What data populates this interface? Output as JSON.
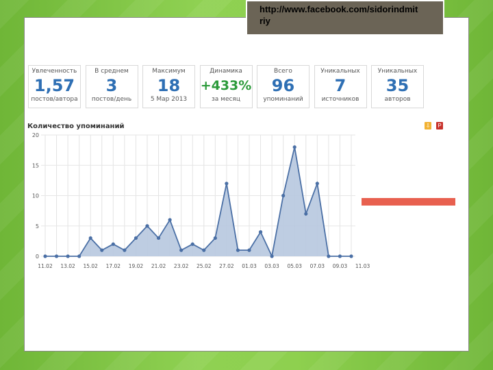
{
  "url": {
    "line1": "http://www.facebook.com/sidorindmit",
    "line2": "riy"
  },
  "stats": [
    {
      "label": "Увлеченность",
      "value": "1,57",
      "sub": "постов/автора",
      "green": false
    },
    {
      "label": "В среднем",
      "value": "3",
      "sub": "постов/день",
      "green": false
    },
    {
      "label": "Максимум",
      "value": "18",
      "sub": "5 Мар 2013",
      "green": false
    },
    {
      "label": "Динамика",
      "value": "+433%",
      "sub": "за месяц",
      "green": true
    },
    {
      "label": "Всего",
      "value": "96",
      "sub": "упоминаний",
      "green": false
    },
    {
      "label": "Уникальных",
      "value": "7",
      "sub": "источников",
      "green": false
    },
    {
      "label": "Уникальных",
      "value": "35",
      "sub": "авторов",
      "green": false
    }
  ],
  "chart_title": "Количество упоминаний",
  "icons": {
    "export": "export-icon",
    "pdf": "pdf-icon",
    "accent": "#e8604f"
  },
  "chart_data": {
    "type": "area",
    "title": "Количество упоминаний",
    "xlabel": "",
    "ylabel": "",
    "ylim": [
      0,
      20
    ],
    "yticks": [
      0,
      5,
      10,
      15,
      20
    ],
    "xticks": [
      "11.02",
      "13.02",
      "15.02",
      "17.02",
      "19.02",
      "21.02",
      "23.02",
      "25.02",
      "27.02",
      "01.03",
      "03.03",
      "05.03",
      "07.03",
      "09.03",
      "11.03"
    ],
    "values": [
      0,
      0,
      0,
      0,
      3,
      1,
      2,
      1,
      3,
      5,
      3,
      6,
      1,
      2,
      1,
      3,
      12,
      1,
      1,
      4,
      0,
      10,
      18,
      7,
      12,
      0,
      0,
      0
    ],
    "grid": true,
    "color": "#4a6fa5"
  }
}
